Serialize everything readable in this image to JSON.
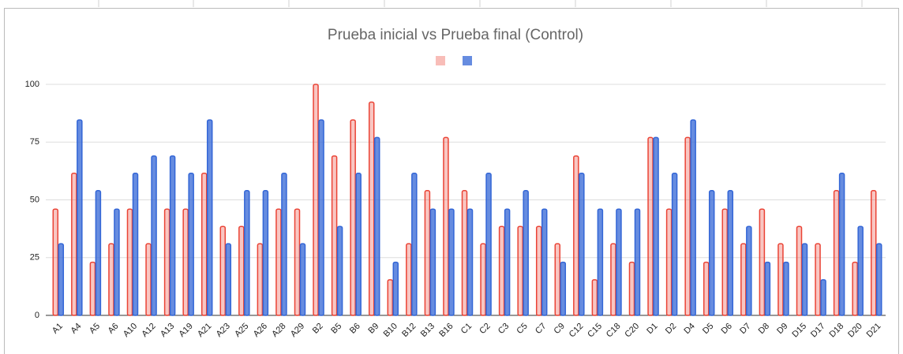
{
  "chart_data": {
    "type": "bar",
    "title": "Prueba inicial vs Prueba final (Control)",
    "categories": [
      "A1",
      "A4",
      "A5",
      "A6",
      "A10",
      "A12",
      "A13",
      "A19",
      "A21",
      "A23",
      "A25",
      "A26",
      "A28",
      "A29",
      "B2",
      "B5",
      "B6",
      "B9",
      "B10",
      "B12",
      "B13",
      "B16",
      "C1",
      "C2",
      "C3",
      "C5",
      "C7",
      "C9",
      "C12",
      "C15",
      "C18",
      "C20",
      "D1",
      "D2",
      "D4",
      "D5",
      "D6",
      "D7",
      "D8",
      "D9",
      "D15",
      "D17",
      "D18",
      "D20",
      "D21"
    ],
    "series": [
      {
        "color": "#ea4335",
        "values": [
          46,
          61.5,
          23,
          31,
          46,
          31,
          46,
          46,
          61.5,
          38.5,
          38.5,
          31,
          46,
          46,
          100,
          69,
          84.6,
          92.3,
          15.4,
          31,
          54,
          77,
          54,
          31,
          38.5,
          38.5,
          38.5,
          31,
          69,
          15.4,
          31,
          23,
          77,
          46,
          77,
          23,
          46,
          31,
          46,
          31,
          38.5,
          31,
          54,
          23,
          54
        ]
      },
      {
        "color": "#3366d6",
        "values": [
          31,
          84.6,
          54,
          46,
          61.5,
          69,
          69,
          61.5,
          84.6,
          31,
          54,
          54,
          61.5,
          31,
          84.6,
          38.5,
          61.5,
          77,
          23,
          61.5,
          46,
          46,
          46,
          61.5,
          46,
          54,
          46,
          23,
          61.5,
          46,
          46,
          46,
          77,
          61.5,
          84.6,
          54,
          54,
          38.5,
          23,
          23,
          31,
          15.4,
          61.5,
          38.5,
          31
        ]
      }
    ],
    "ylim": [
      0,
      100
    ],
    "yticks": [
      0,
      25,
      50,
      75,
      100
    ],
    "grid": true
  }
}
